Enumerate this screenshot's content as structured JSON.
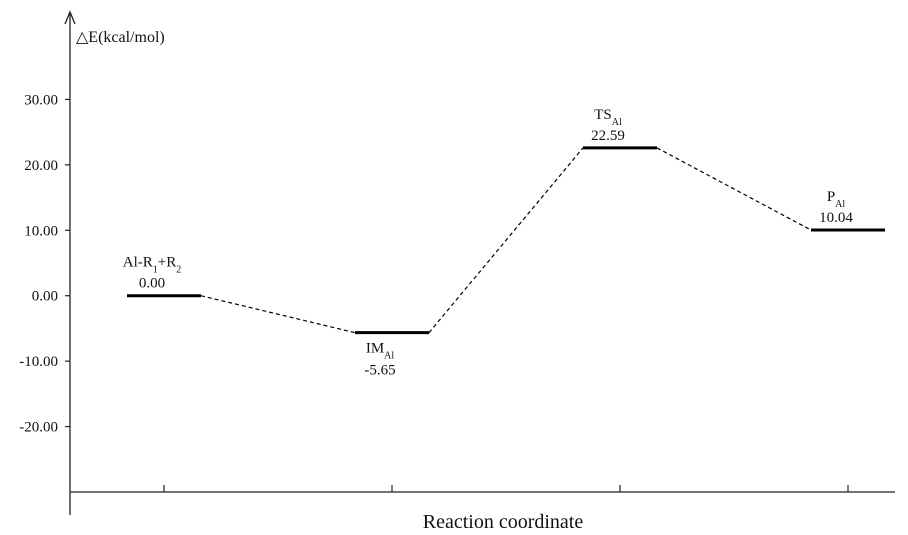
{
  "chart_data": {
    "type": "energy_profile",
    "y_axis_label": "△E(kcal/mol)",
    "x_axis_label": "Reaction coordinate",
    "categories": [
      [
        {
          "t": "Al-R"
        },
        {
          "t": "1",
          "sub": true
        },
        {
          "t": "+R"
        },
        {
          "t": "2",
          "sub": true
        }
      ],
      [
        {
          "t": "IM"
        },
        {
          "t": "Al",
          "sub": true
        }
      ],
      [
        {
          "t": "TS"
        },
        {
          "t": "Al",
          "sub": true
        }
      ],
      [
        {
          "t": "P"
        },
        {
          "t": "Al",
          "sub": true
        }
      ]
    ],
    "values": [
      0,
      -5.65,
      22.59,
      10.04
    ],
    "value_labels": [
      "0.00",
      "-5.65",
      "22.59",
      "10.04"
    ],
    "ylim": [
      -30,
      40
    ],
    "yticks": [
      {
        "value": -20,
        "label": "-20.00"
      },
      {
        "value": -10,
        "label": "-10.00"
      },
      {
        "value": 0,
        "label": "0.00"
      },
      {
        "value": 10,
        "label": "10.00"
      },
      {
        "value": 20,
        "label": "20.00"
      },
      {
        "value": 30,
        "label": "30.00"
      }
    ],
    "color": "#000000"
  }
}
